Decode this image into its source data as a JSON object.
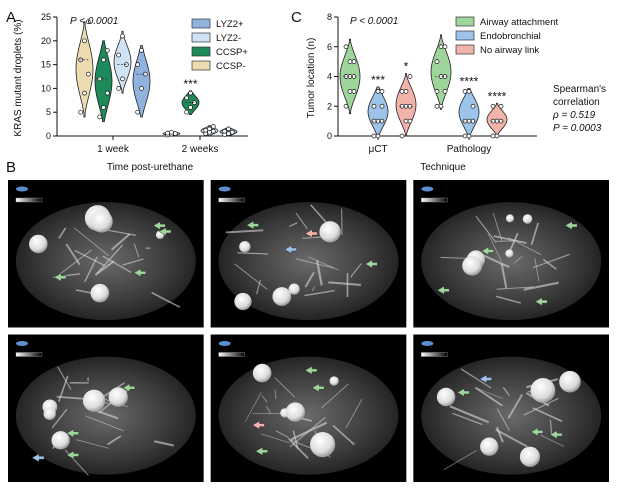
{
  "panels": {
    "a_letter": "A",
    "b_letter": "B",
    "c_letter": "C"
  },
  "colors": {
    "lyz2_pos": "#8fb3dd",
    "lyz2_neg": "#d0e3f4",
    "ccsp_pos": "#1e8a5a",
    "ccsp_neg": "#ecdcb0",
    "airway": "#9ed59a",
    "endo": "#9cc3ea",
    "no_airway": "#f2b3aa"
  },
  "chart_data": [
    {
      "type": "violin",
      "title": "",
      "ylabel": "KRAS mutant droplets (%)",
      "xlabel": "Time post-urethane",
      "ylim": [
        0,
        25
      ],
      "yticks": [
        "0",
        "5",
        "10",
        "15",
        "20",
        "25"
      ],
      "categories": [
        "1 week",
        "2 weeks"
      ],
      "annotation": "P < 0.0001",
      "legend_position": "top-right",
      "series": [
        {
          "name": "CCSP-",
          "color_key": "ccsp_neg",
          "values": [
            [
              5,
              9,
              13,
              16,
              20,
              24
            ],
            [
              0.2,
              0.4,
              0.5,
              0.6,
              0.8
            ]
          ],
          "violin_range": [
            [
              4,
              24
            ],
            [
              0,
              1
            ]
          ]
        },
        {
          "name": "CCSP+",
          "color_key": "ccsp_pos",
          "values": [
            [
              4,
              6,
              9,
              12,
              16,
              18
            ],
            [
              5,
              6,
              7,
              8,
              9
            ]
          ],
          "violin_range": [
            [
              3,
              20
            ],
            [
              4.5,
              9.5
            ]
          ]
        },
        {
          "name": "LYZ2-",
          "color_key": "lyz2_neg",
          "values": [
            [
              10,
              12,
              15,
              17,
              21
            ],
            [
              0.5,
              0.8,
              1,
              1.2,
              1.5,
              2
            ]
          ],
          "violin_range": [
            [
              9,
              22
            ],
            [
              0,
              2.2
            ]
          ]
        },
        {
          "name": "LYZ2+",
          "color_key": "lyz2_pos",
          "values": [
            [
              5,
              10,
              13,
              15,
              18
            ],
            [
              0.3,
              0.5,
              0.8,
              1,
              1.5
            ]
          ],
          "violin_range": [
            [
              4,
              19
            ],
            [
              0,
              1.8
            ]
          ]
        }
      ],
      "significance": [
        {
          "category": "2 weeks",
          "series": "CCSP+",
          "label": "***"
        }
      ],
      "legend": [
        "LYZ2+",
        "LYZ2-",
        "CCSP+",
        "CCSP-"
      ]
    },
    {
      "type": "violin",
      "title": "",
      "ylabel": "Tumor location (n)",
      "xlabel": "Technique",
      "ylim": [
        0,
        8
      ],
      "yticks": [
        "0",
        "2",
        "4",
        "6",
        "8"
      ],
      "categories": [
        "μCT",
        "Pathology"
      ],
      "annotation": "P < 0.0001",
      "legend_position": "top-right",
      "legend": [
        "Airway attachment",
        "Endobronchial",
        "No airway link"
      ],
      "series": [
        {
          "name": "Airway attachment",
          "color_key": "airway",
          "values": [
            [
              2,
              3,
              3,
              4,
              4,
              4,
              4,
              5,
              5,
              6
            ],
            [
              2,
              2,
              3,
              3,
              4,
              4,
              5,
              6,
              6
            ]
          ],
          "violin_range": [
            [
              1.5,
              6.5
            ],
            [
              1.8,
              6.8
            ]
          ]
        },
        {
          "name": "Endobronchial",
          "color_key": "endo",
          "values": [
            [
              0,
              0,
              1,
              1,
              1,
              2,
              2,
              3,
              3
            ],
            [
              0,
              0,
              1,
              1,
              1,
              2,
              3,
              3
            ]
          ],
          "violin_range": [
            [
              0,
              3.3
            ],
            [
              0,
              3.2
            ]
          ]
        },
        {
          "name": "No airway link",
          "color_key": "no_airway",
          "values": [
            [
              0,
              1,
              1,
              2,
              2,
              2,
              3,
              3,
              4
            ],
            [
              0,
              0,
              1,
              1,
              1,
              2,
              2
            ]
          ],
          "violin_range": [
            [
              0,
              4.2
            ],
            [
              0,
              2.2
            ]
          ]
        }
      ],
      "significance": [
        {
          "category": "μCT",
          "series": "Endobronchial",
          "label": "***"
        },
        {
          "category": "μCT",
          "series": "No airway link",
          "label": "*"
        },
        {
          "category": "Pathology",
          "series": "Endobronchial",
          "label": "****"
        },
        {
          "category": "Pathology",
          "series": "No airway link",
          "label": "****"
        }
      ],
      "side_text": [
        "Spearman's",
        "correlation",
        "ρ = 0.519",
        "P = 0.0003"
      ]
    }
  ],
  "images": {
    "grid_rows": 2,
    "grid_cols": 3
  }
}
